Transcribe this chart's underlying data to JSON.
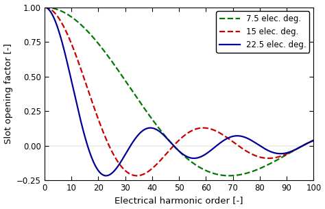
{
  "title": "",
  "xlabel": "Electrical harmonic order [-]",
  "ylabel": "Slot opening factor [-]",
  "xlim": [
    0,
    100
  ],
  "ylim": [
    -0.25,
    1.0
  ],
  "xticks": [
    0,
    10,
    20,
    30,
    40,
    50,
    60,
    70,
    80,
    90,
    100
  ],
  "yticks": [
    -0.25,
    0.0,
    0.25,
    0.5,
    0.75,
    1.0
  ],
  "series": [
    {
      "label": "7.5 elec. deg.",
      "alpha_deg": 7.5,
      "color": "#007700",
      "linestyle": "--",
      "linewidth": 1.6
    },
    {
      "label": "15 elec. deg.",
      "alpha_deg": 15,
      "color": "#cc0000",
      "linestyle": "--",
      "linewidth": 1.6
    },
    {
      "label": "22.5 elec. deg.",
      "alpha_deg": 22.5,
      "color": "#000099",
      "linestyle": "-",
      "linewidth": 1.6
    }
  ],
  "legend_loc": "upper right",
  "legend_fontsize": 8.5,
  "tick_fontsize": 8.5,
  "label_fontsize": 9.5,
  "background_color": "#ffffff",
  "figure_width": 4.74,
  "figure_height": 3.05,
  "dpi": 100
}
